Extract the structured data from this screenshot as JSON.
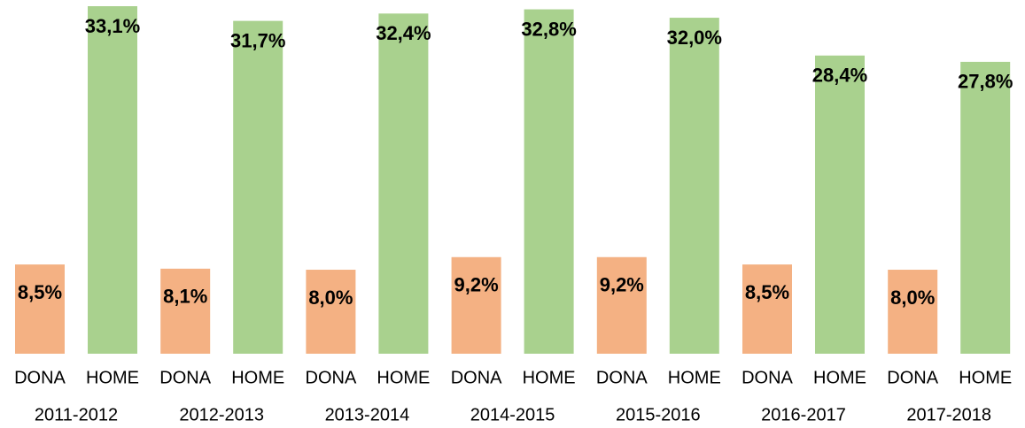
{
  "chart_data": {
    "type": "bar",
    "categories": [
      "2011-2012",
      "2012-2013",
      "2013-2014",
      "2014-2015",
      "2015-2016",
      "2016-2017",
      "2017-2018"
    ],
    "series": [
      {
        "name": "DONA",
        "color": "#f4b183",
        "values": [
          8.5,
          8.1,
          8.0,
          9.2,
          9.2,
          8.5,
          8.0
        ],
        "value_labels": [
          "8,5%",
          "8,1%",
          "8,0%",
          "9,2%",
          "9,2%",
          "8,5%",
          "8,0%"
        ]
      },
      {
        "name": "HOME",
        "color": "#a9d18e",
        "values": [
          33.1,
          31.7,
          32.4,
          32.8,
          32.0,
          28.4,
          27.8
        ],
        "value_labels": [
          "33,1%",
          "31,7%",
          "32,4%",
          "32,8%",
          "32,0%",
          "28,4%",
          "27,8%"
        ]
      }
    ]
  }
}
